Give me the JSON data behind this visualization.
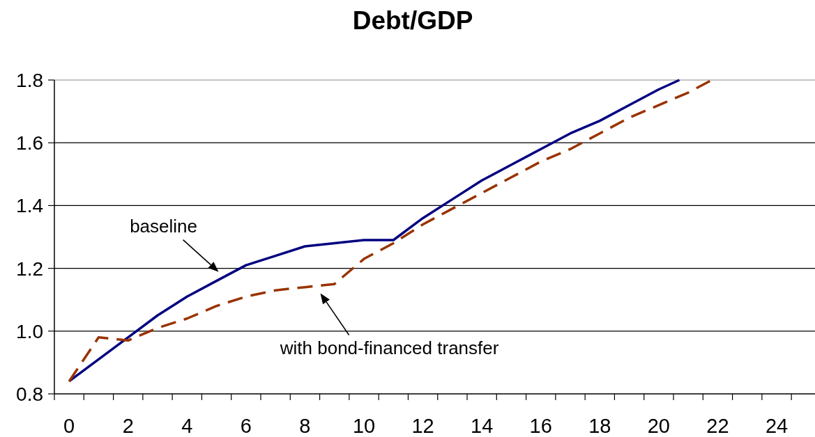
{
  "chart_data": {
    "type": "line",
    "title": "Debt/GDP",
    "xlim": [
      -0.5,
      25.3
    ],
    "xticks": [
      {
        "value": -0.5,
        "label": null
      },
      0,
      {
        "value": 0.5,
        "label": null
      },
      {
        "value": 1.5,
        "label": null
      },
      2,
      {
        "value": 2.5,
        "label": null
      },
      {
        "value": 3.5,
        "label": null
      },
      4,
      {
        "value": 4.5,
        "label": null
      },
      {
        "value": 5.5,
        "label": null
      },
      6,
      {
        "value": 6.5,
        "label": null
      },
      {
        "value": 7.5,
        "label": null
      },
      8,
      {
        "value": 8.5,
        "label": null
      },
      {
        "value": 9.5,
        "label": null
      },
      10,
      {
        "value": 10.5,
        "label": null
      },
      {
        "value": 11.5,
        "label": null
      },
      12,
      {
        "value": 12.5,
        "label": null
      },
      {
        "value": 13.5,
        "label": null
      },
      14,
      {
        "value": 14.5,
        "label": null
      },
      {
        "value": 15.5,
        "label": null
      },
      16,
      {
        "value": 16.5,
        "label": null
      },
      {
        "value": 17.5,
        "label": null
      },
      18,
      {
        "value": 18.5,
        "label": null
      },
      {
        "value": 19.5,
        "label": null
      },
      20,
      {
        "value": 20.5,
        "label": null
      },
      {
        "value": 21.5,
        "label": null
      },
      22,
      {
        "value": 22.5,
        "label": null
      },
      {
        "value": 23.5,
        "label": null
      },
      24,
      {
        "value": 24.5,
        "label": null
      }
    ],
    "ylim": [
      0.8,
      1.8
    ],
    "yticks": [
      0.8,
      {
        "value": 1,
        "label": "1.0"
      },
      1.2,
      1.4,
      1.6,
      1.8
    ],
    "grid": "y",
    "series": [
      {
        "color": "#000080",
        "line_style": "solid",
        "x": [
          0,
          1,
          2,
          3,
          4,
          5,
          6,
          7,
          8,
          9,
          10,
          11,
          12,
          13,
          14,
          15,
          16,
          17,
          18,
          19,
          20,
          20.7
        ],
        "values": [
          0.84,
          0.91,
          0.98,
          1.05,
          1.11,
          1.16,
          1.21,
          1.24,
          1.27,
          1.28,
          1.29,
          1.29,
          1.36,
          1.42,
          1.48,
          1.53,
          1.58,
          1.63,
          1.67,
          1.72,
          1.77,
          1.8
        ]
      },
      {
        "color": "#993300",
        "line_style": "dashed",
        "x": [
          0,
          1,
          2,
          3,
          4,
          5,
          6,
          7,
          8,
          9,
          10,
          11,
          12,
          13,
          14,
          15,
          16,
          17,
          18,
          19,
          20,
          21,
          21.8
        ],
        "values": [
          0.84,
          0.98,
          0.97,
          1.01,
          1.04,
          1.08,
          1.11,
          1.13,
          1.14,
          1.15,
          1.23,
          1.28,
          1.34,
          1.39,
          1.44,
          1.49,
          1.54,
          1.58,
          1.63,
          1.68,
          1.72,
          1.76,
          1.8
        ]
      }
    ],
    "annotations": [
      {
        "text": "baseline",
        "x": 5,
        "y": 1.16
      },
      {
        "text": "with bond-financed transfer",
        "x": 8.5,
        "y": 1.147
      }
    ]
  }
}
